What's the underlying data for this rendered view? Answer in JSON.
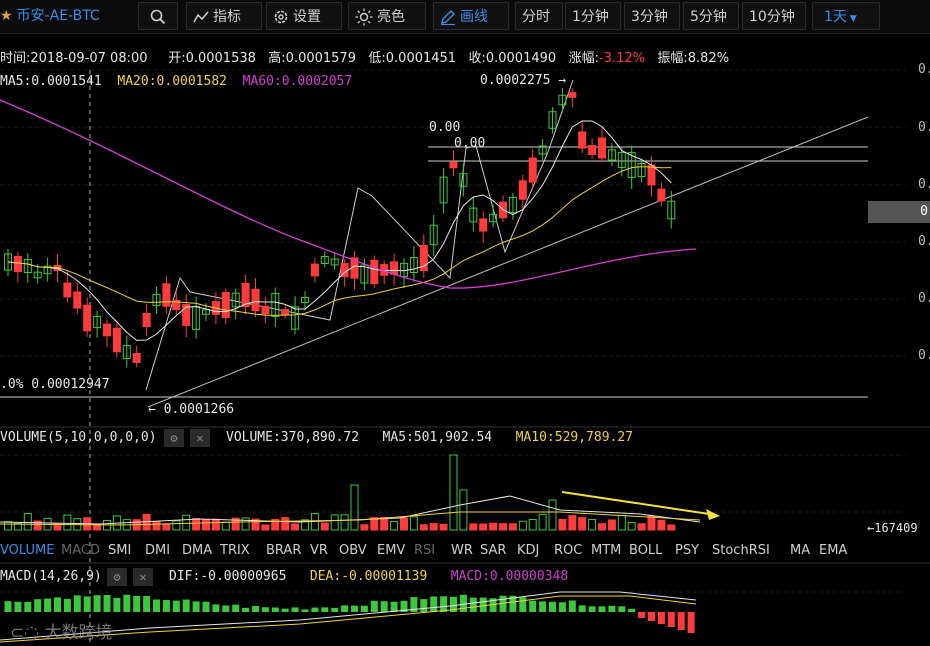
{
  "toolbar": {
    "symbol": "币安-AE-BTC",
    "indicator_label": "指标",
    "settings_label": "设置",
    "brightness_label": "亮色",
    "draw_label": "画线",
    "intervals": [
      "分时",
      "1分钟",
      "3分钟",
      "5分钟",
      "10分钟"
    ],
    "period_label": "1天"
  },
  "ohlc": {
    "time": "时间:2018-09-07 08:00",
    "open": "开:0.0001538",
    "high": "高:0.0001579",
    "low": "低:0.0001451",
    "close": "收:0.0001490",
    "change_label": "涨幅:",
    "change_value": "-3.12%",
    "amplitude": "振幅:8.82%"
  },
  "ma": {
    "ma5": "MA5:0.0001541",
    "ma20": "MA20:0.0001582",
    "ma60": "MA60:0.0002057"
  },
  "annotations": {
    "high_mark": "0.0002275 →",
    "low_mark": "← 0.0001266",
    "fib0_a": "0.00",
    "fib0_b": "0.00",
    "fib_left": ".0% 0.00012947",
    "axis_ticks": [
      "0.",
      "0.",
      "0.",
      "0.",
      "0.",
      "0."
    ],
    "current_price": "0",
    "volume_arrow": "←167409"
  },
  "volume_bar": {
    "title": "VOLUME(5,10,0,0,0,0)",
    "volume": "VOLUME:370,890.72",
    "ma5": "MA5:501,902.54",
    "ma10": "MA10:529,789.27"
  },
  "indicator_tabs": [
    "VOLUME",
    "MACD",
    "SMI",
    "DMI",
    "DMA",
    "TRIX",
    "BRAR",
    "VR",
    "OBV",
    "EMV",
    "RSI",
    "WR",
    "SAR",
    "KDJ",
    "ROC",
    "MTM",
    "BOLL",
    "PSY",
    "StochRSI",
    "MA",
    "EMA"
  ],
  "macd_bar": {
    "title": "MACD(14,26,9)",
    "dif": "DIF:-0.00000965",
    "dea": "DEA:-0.00001139",
    "macd": "MACD:0.00000348"
  },
  "watermark": "大数跨境",
  "colors": {
    "up": "#3cc83c",
    "down": "#ff3b3b",
    "ma5": "#e6e6e6",
    "ma20": "#f0d23c",
    "ma60": "#d23cd2",
    "accent": "#3a8ee6"
  }
}
